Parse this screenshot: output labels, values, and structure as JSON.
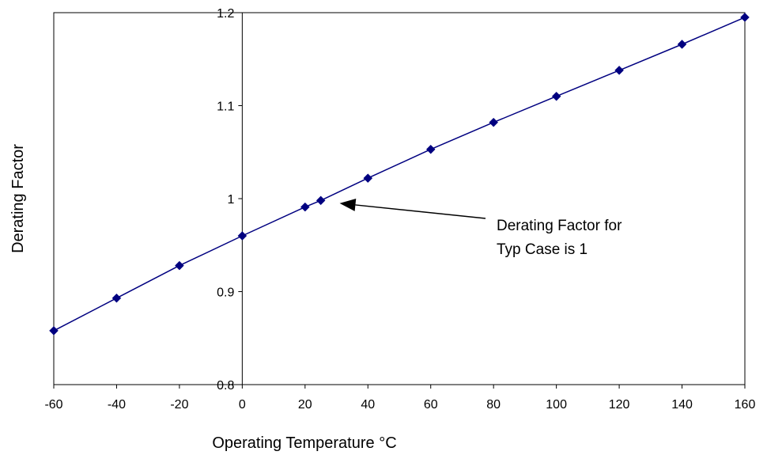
{
  "chart_data": {
    "type": "line",
    "title": "",
    "xlabel": "Operating Temperature °C",
    "ylabel": "Derating Factor",
    "xlim": [
      -60,
      160
    ],
    "ylim": [
      0.8,
      1.2
    ],
    "x_ticks": [
      "-60",
      "-40",
      "-20",
      "0",
      "20",
      "40",
      "60",
      "80",
      "100",
      "120",
      "140",
      "160"
    ],
    "y_ticks": [
      "0.8",
      "0.9",
      "1",
      "1.1",
      "1.2"
    ],
    "grid": false,
    "legend": "none",
    "series": [
      {
        "color": "#000080",
        "marker": "diamond",
        "points": [
          {
            "x": -60,
            "y": 0.858
          },
          {
            "x": -40,
            "y": 0.893
          },
          {
            "x": -20,
            "y": 0.928
          },
          {
            "x": 0,
            "y": 0.96
          },
          {
            "x": 20,
            "y": 0.991
          },
          {
            "x": 25,
            "y": 0.998
          },
          {
            "x": 40,
            "y": 1.022
          },
          {
            "x": 60,
            "y": 1.053
          },
          {
            "x": 80,
            "y": 1.082
          },
          {
            "x": 100,
            "y": 1.11
          },
          {
            "x": 120,
            "y": 1.138
          },
          {
            "x": 140,
            "y": 1.166
          },
          {
            "x": 160,
            "y": 1.195
          }
        ]
      }
    ],
    "annotation": {
      "lines": [
        "Derating  Factor for",
        "Typ Case is 1"
      ],
      "target": {
        "x": 30,
        "y": 0.995
      }
    }
  }
}
